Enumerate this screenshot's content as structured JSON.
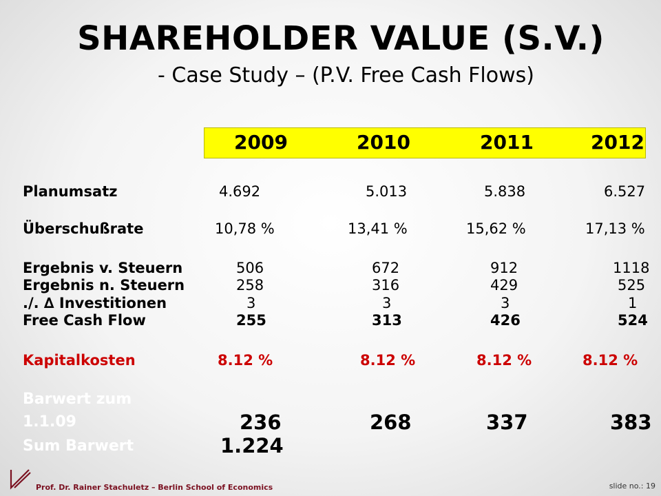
{
  "title": "SHAREHOLDER VALUE  (S.V.)",
  "subtitle": "- Case Study – (P.V. Free Cash Flows)",
  "years": [
    "2009",
    "2010",
    "2011",
    "2012"
  ],
  "rows": {
    "planumsatz": {
      "label": "Planumsatz",
      "values": [
        "4.692",
        "5.013",
        "5.838",
        "6.527"
      ]
    },
    "ueberschussrate": {
      "label": "Überschußrate",
      "values": [
        "10,78 %",
        "13,41 %",
        "15,62 %",
        "17,13 %"
      ]
    },
    "ergebnis_v": {
      "label": "Ergebnis v. Steuern",
      "values": [
        "506",
        "672",
        "912",
        "1118"
      ]
    },
    "ergebnis_n": {
      "label": "Ergebnis n. Steuern",
      "values": [
        "258",
        "316",
        "429",
        "525"
      ]
    },
    "investitionen": {
      "label": "./. ∆ Investitionen",
      "values": [
        "3",
        "3",
        "3",
        "1"
      ]
    },
    "fcf": {
      "label": "Free Cash Flow",
      "values": [
        "255",
        "313",
        "426",
        "524"
      ]
    },
    "kapitalkosten": {
      "label": "Kapitalkosten",
      "values": [
        "8.12 %",
        "8.12 %",
        "8.12 %",
        "8.12 %"
      ]
    },
    "barwert": {
      "label_lines": [
        "Barwert zum",
        "1.1.09",
        "Sum Barwert"
      ],
      "values": [
        "236",
        "268",
        "337",
        "383"
      ],
      "total": "1.224"
    }
  },
  "footer": {
    "author": "Prof. Dr. Rainer Stachuletz – Berlin School of Economics",
    "slide_label": "slide no.:",
    "slide_number": "19"
  },
  "colors": {
    "year_highlight": "#ffff00",
    "accent_red": "#cc0000",
    "footer_text": "#7a1020"
  },
  "icons": {
    "logo": "school-logo-icon"
  }
}
